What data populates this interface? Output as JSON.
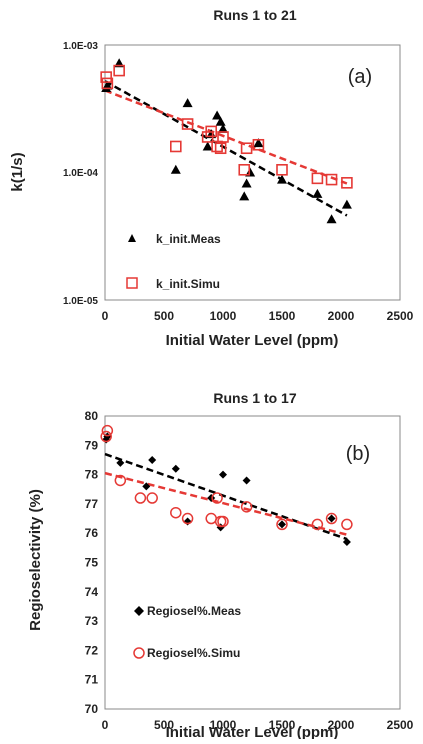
{
  "chart_data": [
    {
      "type": "scatter",
      "title": "Runs 1 to 21",
      "panel_label": "(a)",
      "xlabel": "Initial Water Level (ppm)",
      "ylabel": "k(1/s)",
      "xlim": [
        0,
        2500
      ],
      "ylim": [
        1e-05,
        0.001
      ],
      "yscale": "log",
      "xticks": [
        "0",
        "500",
        "1000",
        "1500",
        "2000",
        "2500"
      ],
      "yticks": [
        "1.0E-05",
        "1.0E-04",
        "1.0E-03"
      ],
      "legend_position": "bottom-left",
      "series": [
        {
          "name": "k_init.Meas",
          "marker": "triangle",
          "color": "#000000",
          "x": [
            10,
            20,
            120,
            600,
            700,
            870,
            900,
            950,
            980,
            1000,
            1180,
            1200,
            1230,
            1300,
            1500,
            1800,
            1920,
            2050
          ],
          "y": [
            0.00046,
            0.00048,
            0.00072,
            0.000105,
            0.00035,
            0.00016,
            0.0002,
            0.00028,
            0.00025,
            0.00022,
            6.5e-05,
            8.2e-05,
            0.0001,
            0.00017,
            8.8e-05,
            6.8e-05,
            4.3e-05,
            5.6e-05
          ]
        },
        {
          "name": "k_init.Simu",
          "marker": "square-open",
          "color": "#e53935",
          "x": [
            10,
            20,
            120,
            600,
            700,
            870,
            900,
            950,
            980,
            1000,
            1180,
            1200,
            1300,
            1500,
            1800,
            1920,
            2050
          ],
          "y": [
            0.00056,
            0.0005,
            0.00063,
            0.00016,
            0.00024,
            0.00019,
            0.00021,
            0.00016,
            0.000155,
            0.00019,
            0.000105,
            0.000155,
            0.000165,
            0.000105,
            9e-05,
            8.8e-05,
            8.3e-05
          ]
        }
      ],
      "trendlines": [
        {
          "color": "#000000",
          "x": [
            0,
            2050
          ],
          "y": [
            0.00052,
            4.6e-05
          ]
        },
        {
          "color": "#e53935",
          "x": [
            0,
            2050
          ],
          "y": [
            0.00044,
            8.2e-05
          ]
        }
      ]
    },
    {
      "type": "scatter",
      "title": "Runs 1 to 17",
      "panel_label": "(b)",
      "xlabel": "Initial Water Level (ppm)",
      "ylabel": "Regioselectivity (%)",
      "xlim": [
        0,
        2500
      ],
      "ylim": [
        70,
        80
      ],
      "xticks": [
        "0",
        "500",
        "1000",
        "1500",
        "2000",
        "2500"
      ],
      "yticks": [
        "70",
        "71",
        "72",
        "73",
        "74",
        "75",
        "76",
        "77",
        "78",
        "79",
        "80"
      ],
      "legend_position": "bottom-left",
      "series": [
        {
          "name": "Regiosel%.Meas",
          "marker": "diamond",
          "color": "#000000",
          "x": [
            10,
            20,
            130,
            350,
            400,
            600,
            700,
            900,
            980,
            1000,
            1200,
            1500,
            1920,
            2050
          ],
          "y": [
            79.2,
            79.3,
            78.4,
            77.6,
            78.5,
            78.2,
            76.4,
            77.2,
            76.2,
            78.0,
            77.8,
            76.3,
            76.5,
            75.7
          ]
        },
        {
          "name": "Regiosel%.Simu",
          "marker": "circle-open",
          "color": "#e53935",
          "x": [
            10,
            20,
            130,
            300,
            400,
            600,
            700,
            900,
            950,
            980,
            1000,
            1200,
            1500,
            1800,
            1920,
            2050
          ],
          "y": [
            79.3,
            79.5,
            77.8,
            77.2,
            77.2,
            76.7,
            76.5,
            76.5,
            77.2,
            76.4,
            76.4,
            76.9,
            76.3,
            76.3,
            76.5,
            76.3
          ]
        }
      ],
      "trendlines": [
        {
          "color": "#000000",
          "x": [
            0,
            2050
          ],
          "y": [
            78.7,
            75.8
          ]
        },
        {
          "color": "#e53935",
          "x": [
            0,
            2050
          ],
          "y": [
            78.05,
            75.95
          ]
        }
      ]
    }
  ]
}
